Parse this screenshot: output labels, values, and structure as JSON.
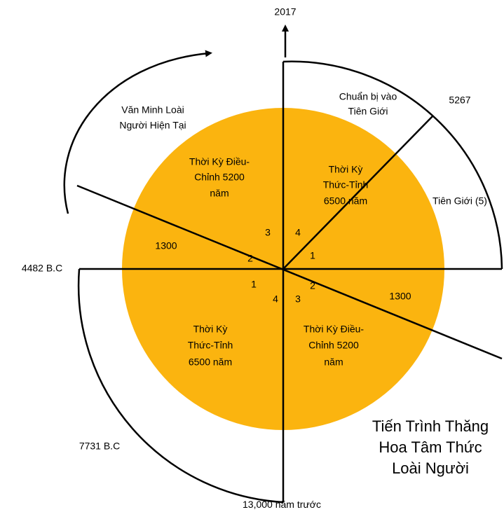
{
  "top_label": "2017",
  "left_label": "4482 B.C",
  "lower_left_label": "7731 B.C",
  "bottom_label": "13,000 năm trước",
  "top_right_label": "5267",
  "arrow_caption": [
    "Văn Minh Loài",
    "Người Hiện Tại"
  ],
  "outer_top": [
    "Chuẩn bị vào",
    "Tiên Giới"
  ],
  "outer_right": "Tiên Giới (5)",
  "top_left_quadrant": [
    "Thời Kỳ Điều-",
    "Chỉnh 5200",
    "năm"
  ],
  "top_right_quadrant": [
    "Thời Kỳ",
    "Thức-Tỉnh",
    "6500 năm"
  ],
  "bottom_left_quadrant": [
    "Thời Kỳ",
    "Thức-Tỉnh",
    "6500 năm"
  ],
  "bottom_right_quadrant": [
    "Thời Kỳ Điều-",
    "Chỉnh 5200",
    "năm"
  ],
  "left_span": "1300",
  "right_span": "1300",
  "segment_numbers": [
    "3",
    "4",
    "1",
    "2",
    "1",
    "2",
    "4",
    "3"
  ],
  "title": [
    "Tiến Trình Thăng",
    "Hoa Tâm Thức",
    "Loài Người"
  ]
}
